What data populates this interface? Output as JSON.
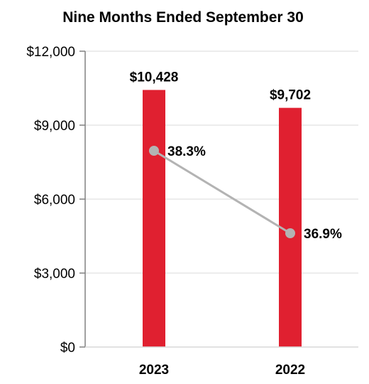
{
  "chart_data": {
    "type": "bar",
    "title": "Nine Months Ended September 30",
    "categories": [
      "2023",
      "2022"
    ],
    "ylim": [
      0,
      12000
    ],
    "yticks": [
      0,
      3000,
      6000,
      9000,
      12000
    ],
    "ytick_labels": [
      "$0",
      "$3,000",
      "$6,000",
      "$9,000",
      "$12,000"
    ],
    "grid": true,
    "series": [
      {
        "type": "bar",
        "values": [
          10428,
          9702
        ],
        "value_labels": [
          "$10,428",
          "$9,702"
        ],
        "color": "#e02030"
      },
      {
        "type": "line",
        "values": [
          38.3,
          36.9
        ],
        "value_labels": [
          "38.3%",
          "36.9%"
        ],
        "color": "#b3b3b3"
      }
    ]
  }
}
